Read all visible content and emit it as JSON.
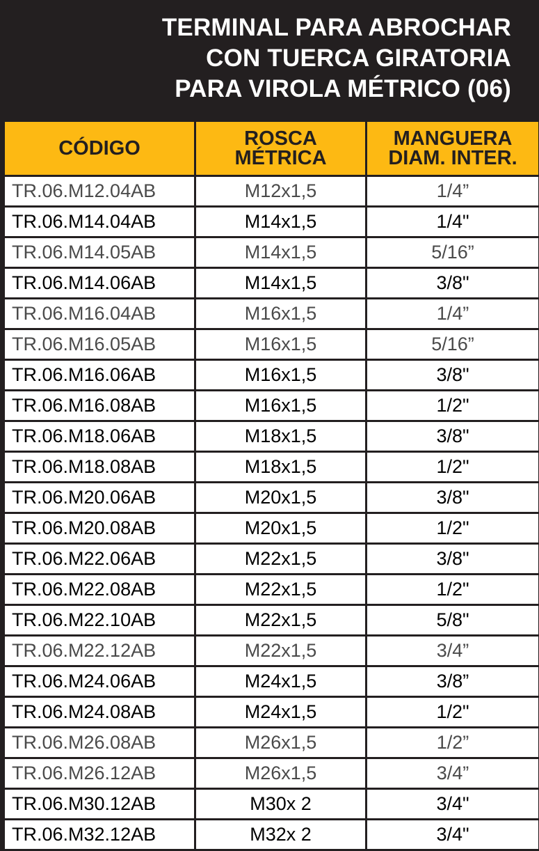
{
  "title": {
    "lines": [
      "TERMINAL PARA ABROCHAR",
      "CON TUERCA GIRATORIA",
      "PARA VIROLA MÉTRICO (06)"
    ]
  },
  "table": {
    "headers": {
      "codigo": [
        "CÓDIGO"
      ],
      "rosca": [
        "ROSCA",
        "MÉTRICA"
      ],
      "manguera": [
        "MANGUERA",
        "DIAM. INTER."
      ]
    },
    "rows": [
      {
        "codigo": "TR.06.M12.04AB",
        "rosca": "M12x1,5",
        "manguera": "1/4”",
        "tone": "light"
      },
      {
        "codigo": "TR.06.M14.04AB",
        "rosca": "M14x1,5",
        "manguera": "1/4\"",
        "tone": "dark"
      },
      {
        "codigo": "TR.06.M14.05AB",
        "rosca": "M14x1,5",
        "manguera": "5/16”",
        "tone": "light"
      },
      {
        "codigo": "TR.06.M14.06AB",
        "rosca": "M14x1,5",
        "manguera": "3/8\"",
        "tone": "dark"
      },
      {
        "codigo": "TR.06.M16.04AB",
        "rosca": "M16x1,5",
        "manguera": "1/4”",
        "tone": "light"
      },
      {
        "codigo": "TR.06.M16.05AB",
        "rosca": "M16x1,5",
        "manguera": "5/16”",
        "tone": "light"
      },
      {
        "codigo": "TR.06.M16.06AB",
        "rosca": "M16x1,5",
        "manguera": "3/8\"",
        "tone": "dark"
      },
      {
        "codigo": "TR.06.M16.08AB",
        "rosca": "M16x1,5",
        "manguera": "1/2\"",
        "tone": "dark"
      },
      {
        "codigo": "TR.06.M18.06AB",
        "rosca": "M18x1,5",
        "manguera": "3/8\"",
        "tone": "dark"
      },
      {
        "codigo": "TR.06.M18.08AB",
        "rosca": "M18x1,5",
        "manguera": "1/2\"",
        "tone": "dark"
      },
      {
        "codigo": "TR.06.M20.06AB",
        "rosca": "M20x1,5",
        "manguera": "3/8\"",
        "tone": "dark"
      },
      {
        "codigo": "TR.06.M20.08AB",
        "rosca": "M20x1,5",
        "manguera": "1/2\"",
        "tone": "dark"
      },
      {
        "codigo": "TR.06.M22.06AB",
        "rosca": "M22x1,5",
        "manguera": "3/8\"",
        "tone": "dark"
      },
      {
        "codigo": "TR.06.M22.08AB",
        "rosca": "M22x1,5",
        "manguera": "1/2\"",
        "tone": "dark"
      },
      {
        "codigo": "TR.06.M22.10AB",
        "rosca": "M22x1,5",
        "manguera": "5/8\"",
        "tone": "dark"
      },
      {
        "codigo": "TR.06.M22.12AB",
        "rosca": "M22x1,5",
        "manguera": "3/4”",
        "tone": "light"
      },
      {
        "codigo": "TR.06.M24.06AB",
        "rosca": "M24x1,5",
        "manguera": "3/8”",
        "tone": "dark"
      },
      {
        "codigo": "TR.06.M24.08AB",
        "rosca": "M24x1,5",
        "manguera": "1/2\"",
        "tone": "dark"
      },
      {
        "codigo": "TR.06.M26.08AB",
        "rosca": "M26x1,5",
        "manguera": "1/2”",
        "tone": "light"
      },
      {
        "codigo": "TR.06.M26.12AB",
        "rosca": "M26x1,5",
        "manguera": "3/4”",
        "tone": "light"
      },
      {
        "codigo": "TR.06.M30.12AB",
        "rosca": "M30x 2",
        "manguera": "3/4\"",
        "tone": "dark"
      },
      {
        "codigo": "TR.06.M32.12AB",
        "rosca": "M32x 2",
        "manguera": "3/4\"",
        "tone": "dark"
      }
    ]
  },
  "colors": {
    "background": "#231f20",
    "header": "#fdb913",
    "row": "#ffffff",
    "text_dark": "#000000",
    "text_light": "#4a4a4a"
  }
}
